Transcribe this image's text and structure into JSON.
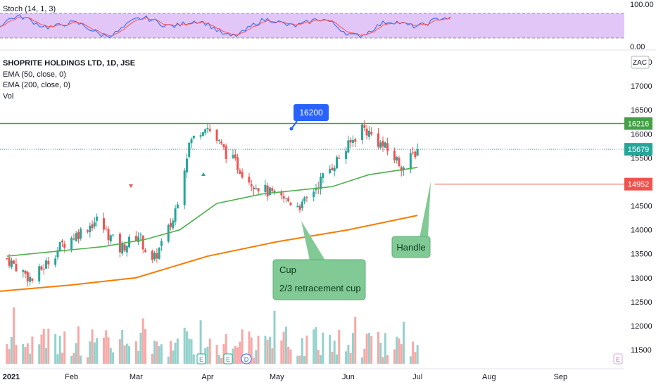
{
  "legend": {
    "stoch": "Stoch (14, 1, 3)",
    "title": "SHOPRITE HOLDINGS LTD, 1D, JSE",
    "ema50": "EMA (50, close, 0)",
    "ema200": "EMA (200, close, 0)",
    "vol": "Vol"
  },
  "currency": "ZAC",
  "stoch_axis": [
    "100.00",
    "0.00"
  ],
  "price_axis": [
    "17500",
    "17000",
    "16500",
    "16000",
    "15500",
    "15000",
    "14500",
    "14000",
    "13500",
    "13000",
    "12500",
    "12000",
    "11500"
  ],
  "time_axis": [
    "2021",
    "Feb",
    "Mar",
    "Apr",
    "May",
    "Jun",
    "Jul",
    "Aug",
    "Sep"
  ],
  "badges": {
    "last": "15679",
    "resistance": "16216",
    "support": "14952"
  },
  "callout": "16200",
  "annotations": {
    "cup_title": "Cup",
    "cup_text": "2/3 retracement cup",
    "handle": "Handle"
  },
  "event_markers": [
    "E",
    "E",
    "D",
    "E"
  ],
  "colors": {
    "up": "#26a69a",
    "down": "#ef5350",
    "ema50": "#4caf50",
    "ema200": "#f57c00",
    "resistance": "#43a047",
    "support": "#ef5350",
    "stoch_k": "#2962ff",
    "stoch_d": "#ff5252",
    "stoch_band": "#e1c6f7",
    "annotation": "#81c995",
    "callout": "#2962ff"
  },
  "chart_data": {
    "type": "candlestick",
    "title": "SHOPRITE HOLDINGS LTD, 1D, JSE",
    "x_range": [
      "2021-01-01",
      "2021-09-30"
    ],
    "y_range": [
      11300,
      17700
    ],
    "price_anchors": [
      {
        "date": "2021-01-04",
        "close": 13400
      },
      {
        "date": "2021-01-15",
        "close": 12950
      },
      {
        "date": "2021-01-28",
        "close": 13700
      },
      {
        "date": "2021-02-12",
        "close": 14200
      },
      {
        "date": "2021-02-22",
        "close": 13600
      },
      {
        "date": "2021-03-02",
        "close": 13900
      },
      {
        "date": "2021-03-08",
        "close": 13300
      },
      {
        "date": "2021-03-17",
        "close": 14200
      },
      {
        "date": "2021-03-24",
        "close": 15800
      },
      {
        "date": "2021-03-31",
        "close": 16200
      },
      {
        "date": "2021-04-09",
        "close": 15600
      },
      {
        "date": "2021-04-20",
        "close": 15000
      },
      {
        "date": "2021-04-30",
        "close": 14700
      },
      {
        "date": "2021-05-12",
        "close": 14500
      },
      {
        "date": "2021-05-21",
        "close": 15100
      },
      {
        "date": "2021-06-02",
        "close": 15800
      },
      {
        "date": "2021-06-07",
        "close": 16150
      },
      {
        "date": "2021-06-17",
        "close": 15700
      },
      {
        "date": "2021-06-25",
        "close": 15300
      },
      {
        "date": "2021-07-01",
        "close": 15679
      }
    ],
    "ema50": [
      {
        "date": "2021-01-04",
        "value": 13450
      },
      {
        "date": "2021-02-15",
        "value": 13650
      },
      {
        "date": "2021-03-05",
        "value": 13800
      },
      {
        "date": "2021-03-20",
        "value": 14000
      },
      {
        "date": "2021-04-05",
        "value": 14550
      },
      {
        "date": "2021-04-25",
        "value": 14750
      },
      {
        "date": "2021-05-25",
        "value": 14900
      },
      {
        "date": "2021-06-10",
        "value": 15150
      },
      {
        "date": "2021-07-01",
        "value": 15300
      }
    ],
    "ema200": [
      {
        "date": "2021-01-01",
        "value": 12720
      },
      {
        "date": "2021-02-01",
        "value": 12850
      },
      {
        "date": "2021-03-01",
        "value": 13000
      },
      {
        "date": "2021-04-01",
        "value": 13450
      },
      {
        "date": "2021-05-01",
        "value": 13750
      },
      {
        "date": "2021-06-01",
        "value": 14000
      },
      {
        "date": "2021-07-01",
        "value": 14300
      }
    ],
    "resistance": 16216,
    "support": 14952,
    "last_close": 15679
  }
}
